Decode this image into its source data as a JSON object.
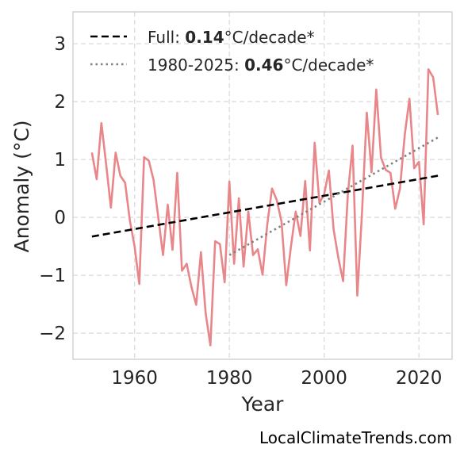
{
  "chart_data": {
    "type": "line",
    "xlabel": "Year",
    "ylabel": "Anomaly (°C)",
    "xlim": [
      1947,
      2027
    ],
    "ylim": [
      -2.45,
      3.55
    ],
    "x_ticks": [
      1960,
      1980,
      2000,
      2020
    ],
    "y_ticks": [
      -2,
      -1,
      0,
      1,
      2,
      3
    ],
    "y_tick_labels": [
      "−2",
      "−1",
      "0",
      "1",
      "2",
      "3"
    ],
    "grid": true,
    "legend_placement": "top-left",
    "colors": {
      "series": "#e8868a",
      "full_trend": "#000000",
      "recent_trend": "#808080",
      "grid": "#d9d9d9",
      "frame": "#cccccc"
    },
    "series": [
      {
        "x": [
          1951,
          1952,
          1953,
          1954,
          1955,
          1956,
          1957,
          1958,
          1959,
          1960,
          1961,
          1962,
          1963,
          1964,
          1965,
          1966,
          1967,
          1968,
          1969,
          1970,
          1971,
          1972,
          1973,
          1974,
          1975,
          1976,
          1977,
          1978,
          1979,
          1980,
          1981,
          1982,
          1983,
          1984,
          1985,
          1986,
          1987,
          1988,
          1989,
          1990,
          1991,
          1992,
          1993,
          1994,
          1995,
          1996,
          1997,
          1998,
          1999,
          2000,
          2001,
          2002,
          2003,
          2004,
          2005,
          2006,
          2007,
          2008,
          2009,
          2010,
          2011,
          2012,
          2013,
          2014,
          2015,
          2016,
          2017,
          2018,
          2019,
          2020,
          2021,
          2022,
          2023,
          2024
        ],
        "values": [
          1.12,
          0.66,
          1.63,
          0.92,
          0.17,
          1.12,
          0.72,
          0.6,
          -0.05,
          -0.5,
          -1.15,
          1.04,
          0.98,
          0.65,
          0.0,
          -0.65,
          0.22,
          -0.56,
          0.77,
          -0.92,
          -0.8,
          -1.2,
          -1.51,
          -0.6,
          -1.66,
          -2.21,
          -0.41,
          -0.46,
          -1.12,
          0.62,
          -0.8,
          0.33,
          -0.85,
          0.1,
          -0.65,
          -0.55,
          -0.99,
          -0.12,
          0.5,
          0.3,
          -0.07,
          -1.17,
          -0.5,
          0.1,
          -0.32,
          0.63,
          -0.57,
          1.29,
          0.25,
          0.4,
          0.81,
          -0.21,
          -0.7,
          -1.1,
          0.4,
          1.24,
          -1.35,
          0.1,
          1.81,
          0.78,
          2.21,
          1.03,
          0.82,
          0.77,
          0.15,
          0.5,
          1.42,
          2.05,
          0.85,
          0.96,
          -0.12,
          2.56,
          2.42,
          1.77
        ]
      }
    ],
    "trends": [
      {
        "style": "dashed",
        "x": [
          1951,
          2024
        ],
        "values": [
          -0.33,
          0.72
        ]
      },
      {
        "style": "dotted",
        "x": [
          1980,
          2024
        ],
        "values": [
          -0.65,
          1.38
        ]
      }
    ],
    "legend": [
      {
        "prefix": "Full: ",
        "value": "0.14",
        "suffix": "°C/decade*"
      },
      {
        "prefix": "1980-2025: ",
        "value": "0.46",
        "suffix": "°C/decade*"
      }
    ],
    "credit": "LocalClimateTrends.com"
  }
}
